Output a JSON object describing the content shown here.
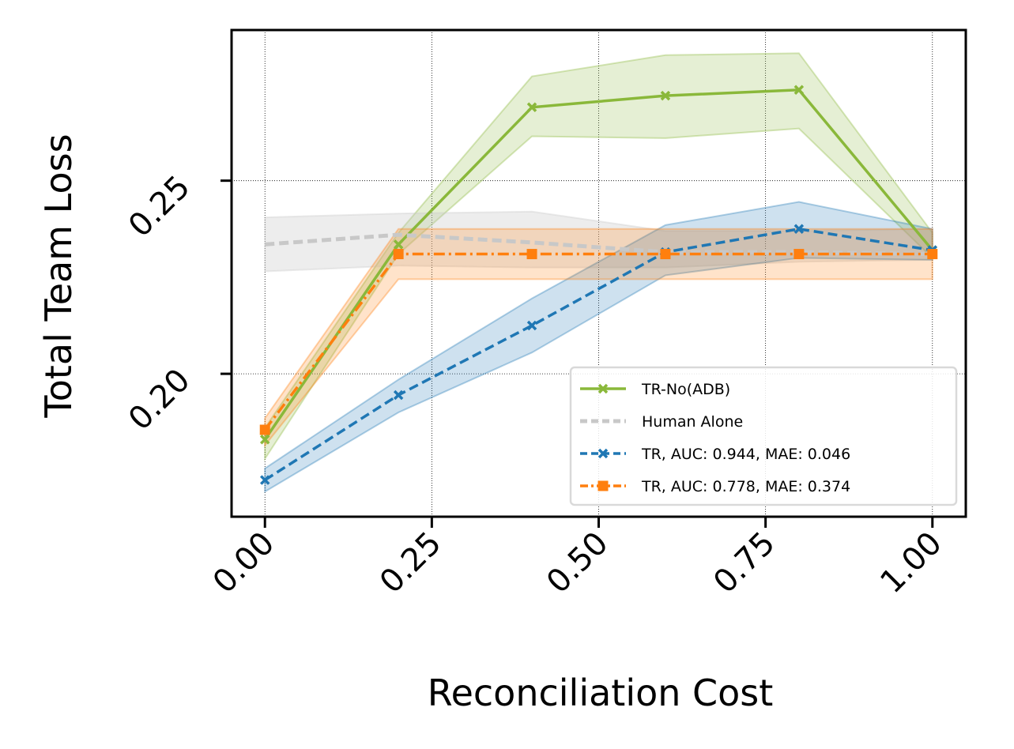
{
  "chart_data": {
    "type": "line",
    "xlabel": "Reconciliation Cost",
    "ylabel": "Total Team Loss",
    "xlim": [
      -0.05,
      1.05
    ],
    "ylim": [
      0.163,
      0.289
    ],
    "xticks": [
      {
        "value": 0.0,
        "label": "0.00"
      },
      {
        "value": 0.25,
        "label": "0.25"
      },
      {
        "value": 0.5,
        "label": "0.50"
      },
      {
        "value": 0.75,
        "label": "0.75"
      },
      {
        "value": 1.0,
        "label": "1.00"
      }
    ],
    "yticks": [
      {
        "value": 0.2,
        "label": "0.20"
      },
      {
        "value": 0.25,
        "label": "0.25"
      }
    ],
    "grid": true,
    "legend_position": "lower-right",
    "x": [
      0.0,
      0.2,
      0.4,
      0.6,
      0.8,
      1.0
    ],
    "series": [
      {
        "name": "TR-No(ADB)",
        "color": "#8ab83a",
        "dash": "solid",
        "marker": "x",
        "values": [
          0.183,
          0.2335,
          0.269,
          0.272,
          0.2735,
          0.232
        ],
        "lower": [
          0.178,
          0.231,
          0.2615,
          0.261,
          0.2635,
          0.23
        ],
        "upper": [
          0.186,
          0.2365,
          0.277,
          0.2825,
          0.283,
          0.2365
        ]
      },
      {
        "name": "Human Alone",
        "color": "#c8c8c8",
        "dash": "dashed",
        "marker": "none",
        "values": [
          0.2335,
          0.236,
          0.234,
          0.2315,
          0.2315,
          0.231
        ],
        "lower": [
          0.2265,
          0.228,
          0.2275,
          0.2275,
          0.229,
          0.2295
        ],
        "upper": [
          0.2405,
          0.2415,
          0.242,
          0.237,
          0.237,
          0.2375
        ]
      },
      {
        "name": "TR, AUC: 0.944, MAE: 0.046",
        "color": "#1f77b4",
        "dash": "dashed",
        "marker": "x",
        "values": [
          0.1725,
          0.1945,
          0.2125,
          0.2315,
          0.2375,
          0.232
        ],
        "lower": [
          0.1695,
          0.19,
          0.2055,
          0.2255,
          0.23,
          0.2295
        ],
        "upper": [
          0.1755,
          0.1985,
          0.2195,
          0.2385,
          0.2445,
          0.2375
        ]
      },
      {
        "name": "TR, AUC: 0.778, MAE: 0.374",
        "color": "#ff7f0e",
        "dash": "dashdot",
        "marker": "square",
        "values": [
          0.1855,
          0.231,
          0.231,
          0.231,
          0.231,
          0.231
        ],
        "lower": [
          0.1815,
          0.2245,
          0.2245,
          0.2245,
          0.2245,
          0.2245
        ],
        "upper": [
          0.1885,
          0.2375,
          0.2375,
          0.2375,
          0.2375,
          0.2375
        ]
      }
    ]
  }
}
